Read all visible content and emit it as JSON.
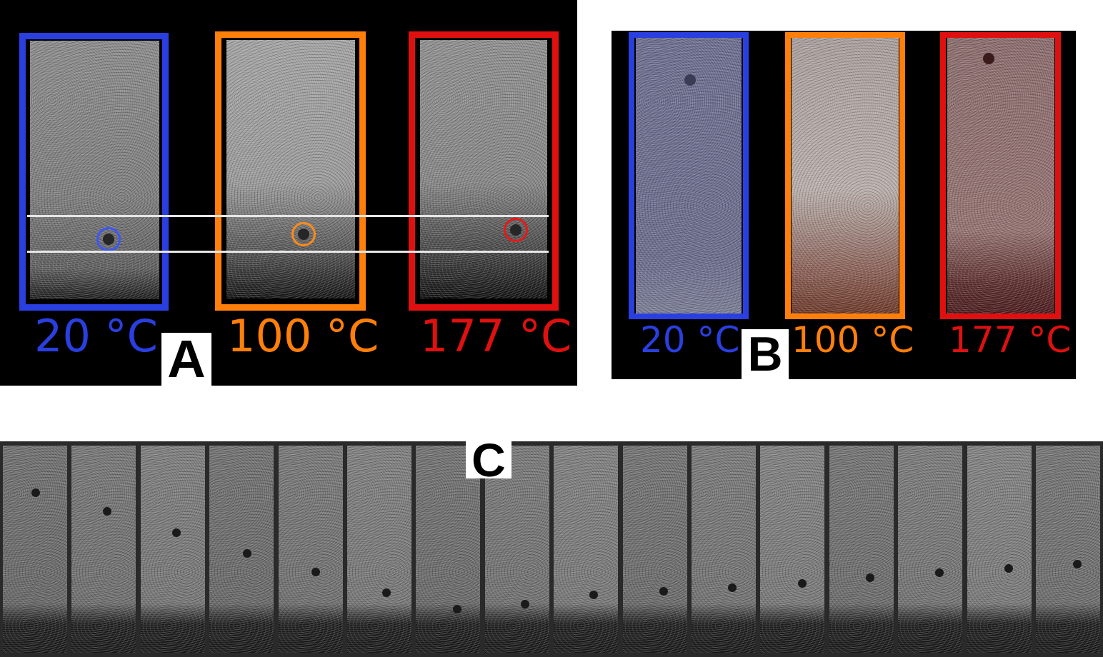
{
  "panel_a": {
    "letter": "A",
    "samples": [
      {
        "label": "20 °C",
        "color": "#2a3fe0"
      },
      {
        "label": "100 °C",
        "color": "#ff7f0a"
      },
      {
        "label": "177 °C",
        "color": "#e01010"
      }
    ]
  },
  "panel_b": {
    "letter": "B",
    "samples": [
      {
        "label": "20 °C",
        "color": "#2a3fe0"
      },
      {
        "label": "100 °C",
        "color": "#ff7f0a"
      },
      {
        "label": "177 °C",
        "color": "#e01010"
      }
    ]
  },
  "panel_c": {
    "letter": "C",
    "frame_count": 16
  }
}
